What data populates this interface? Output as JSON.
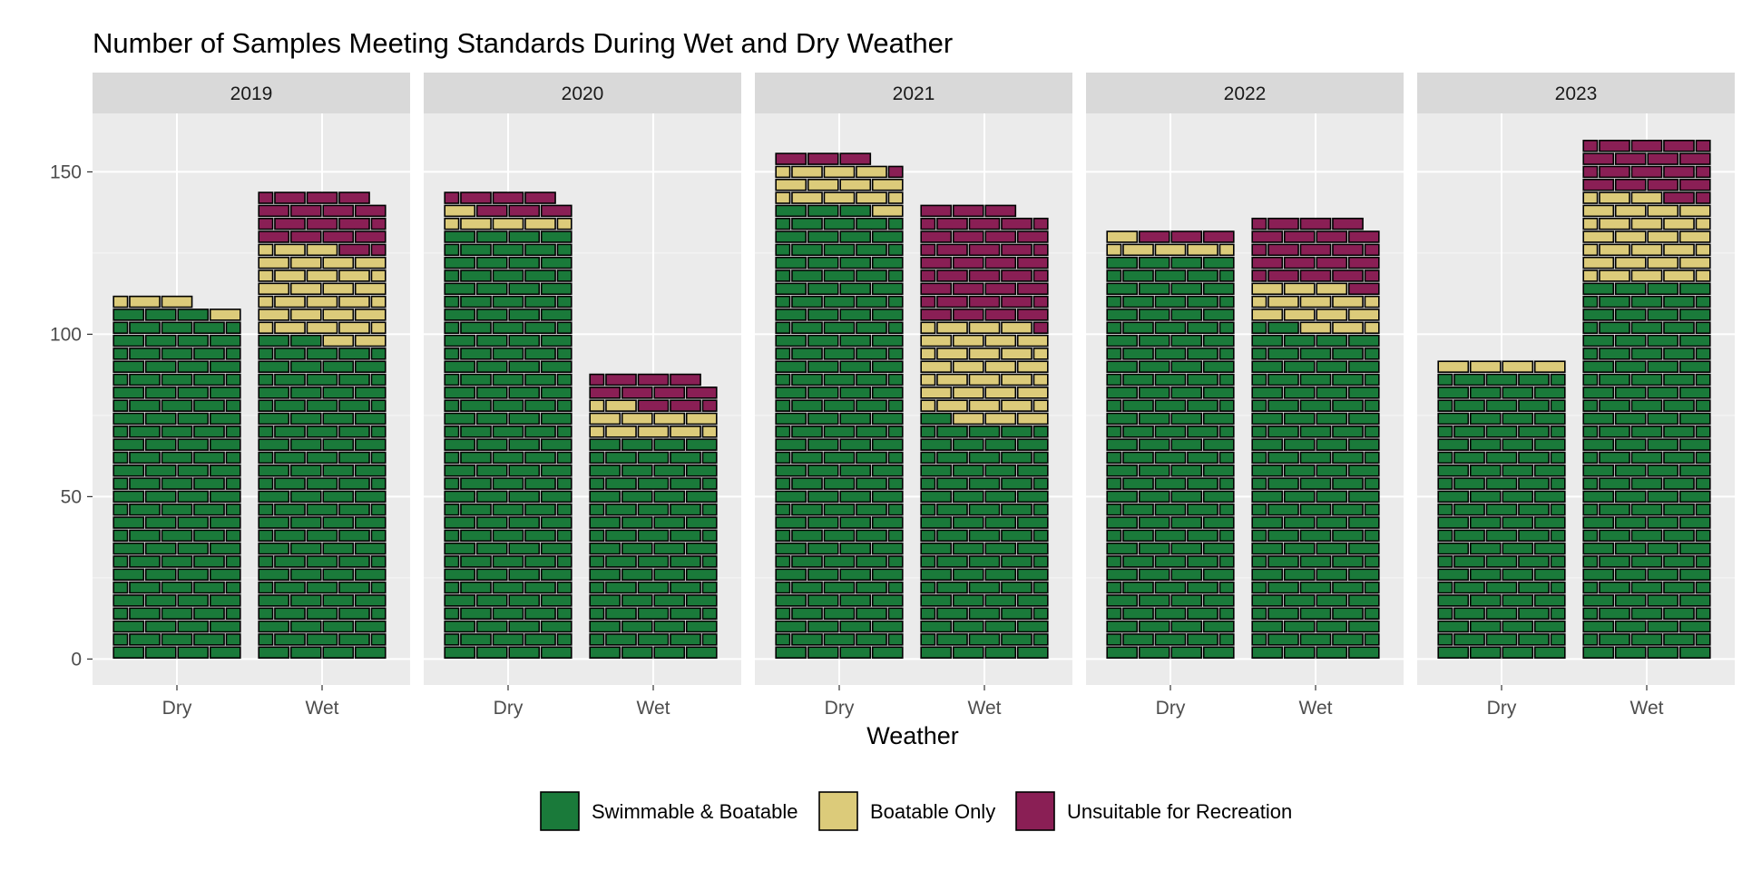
{
  "chart_data": {
    "type": "bar",
    "title": "Number of Samples Meeting Standards During Wet and Dry Weather",
    "xlabel": "Weather",
    "ylabel": "",
    "ylim": [
      -8,
      168
    ],
    "yticks": [
      0,
      50,
      100,
      150
    ],
    "categories": [
      "Dry",
      "Wet"
    ],
    "facets": [
      {
        "label": "2019",
        "counts": {
          "Dry": [
            107,
            3,
            0
          ],
          "Wet": [
            98,
            28,
            17
          ]
        }
      },
      {
        "label": "2020",
        "counts": {
          "Dry": [
            132,
            5,
            6
          ],
          "Wet": [
            68,
            9,
            10
          ]
        }
      },
      {
        "label": "2021",
        "counts": {
          "Dry": [
            139,
            12,
            4
          ],
          "Wet": [
            73,
            30,
            36
          ]
        }
      },
      {
        "label": "2022",
        "counts": {
          "Dry": [
            124,
            5,
            3
          ],
          "Wet": [
            101,
            14,
            20
          ]
        }
      },
      {
        "label": "2023",
        "counts": {
          "Dry": [
            88,
            4,
            0
          ],
          "Wet": [
            116,
            26,
            18
          ]
        }
      }
    ],
    "series": [
      {
        "name": "Swimmable & Boatable",
        "color": "#1a7a3a"
      },
      {
        "name": "Boatable Only",
        "color": "#dccb7a"
      },
      {
        "name": "Unsuitable for Recreation",
        "color": "#8a1f55"
      }
    ],
    "legend_position": "bottom",
    "grid": true
  }
}
